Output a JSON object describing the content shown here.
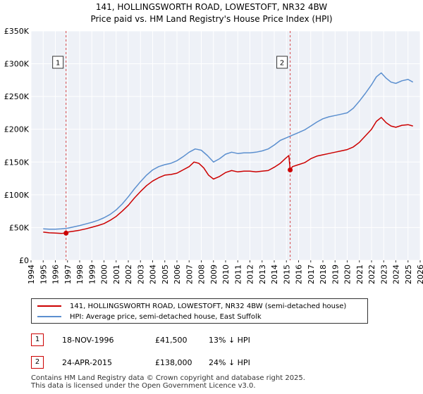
{
  "chart_data": {
    "type": "line",
    "title": "141, HOLLINGSWORTH ROAD, LOWESTOFT, NR32 4BW",
    "subtitle": "Price paid vs. HM Land Registry's House Price Index (HPI)",
    "xlabel": "",
    "ylabel": "",
    "xlim": [
      1994,
      2026
    ],
    "ylim": [
      0,
      350000
    ],
    "x_ticks": [
      "1994",
      "1995",
      "1996",
      "1997",
      "1998",
      "1999",
      "2000",
      "2001",
      "2002",
      "2003",
      "2004",
      "2005",
      "2006",
      "2007",
      "2008",
      "2009",
      "2010",
      "2011",
      "2012",
      "2013",
      "2014",
      "2015",
      "2016",
      "2017",
      "2018",
      "2019",
      "2020",
      "2021",
      "2022",
      "2023",
      "2024",
      "2025",
      "2026"
    ],
    "y_ticks": [
      {
        "value": 0,
        "label": "£0"
      },
      {
        "value": 50000,
        "label": "£50K"
      },
      {
        "value": 100000,
        "label": "£100K"
      },
      {
        "value": 150000,
        "label": "£150K"
      },
      {
        "value": 200000,
        "label": "£200K"
      },
      {
        "value": 250000,
        "label": "£250K"
      },
      {
        "value": 300000,
        "label": "£300K"
      },
      {
        "value": 350000,
        "label": "£350K"
      }
    ],
    "grid": true,
    "series": [
      {
        "name": "141, HOLLINGSWORTH ROAD, LOWESTOFT, NR32 4BW (semi-detached house)",
        "color": "#cc0000",
        "x": [
          1995.0,
          1995.5,
          1996.0,
          1996.5,
          1996.88,
          1997.0,
          1997.5,
          1998.0,
          1998.5,
          1999.0,
          1999.5,
          2000.0,
          2000.5,
          2001.0,
          2001.5,
          2002.0,
          2002.5,
          2003.0,
          2003.5,
          2004.0,
          2004.5,
          2005.0,
          2005.5,
          2006.0,
          2006.5,
          2007.0,
          2007.4,
          2007.8,
          2008.2,
          2008.6,
          2009.0,
          2009.5,
          2010.0,
          2010.5,
          2011.0,
          2011.5,
          2012.0,
          2012.5,
          2013.0,
          2013.5,
          2014.0,
          2014.5,
          2014.9,
          2015.2,
          2015.31,
          2015.5,
          2016.0,
          2016.5,
          2017.0,
          2017.5,
          2018.0,
          2018.5,
          2019.0,
          2019.5,
          2020.0,
          2020.5,
          2021.0,
          2021.5,
          2022.0,
          2022.4,
          2022.8,
          2023.2,
          2023.6,
          2024.0,
          2024.5,
          2025.0,
          2025.4
        ],
        "values": [
          43000,
          42000,
          41500,
          41000,
          41500,
          43000,
          44500,
          46000,
          48000,
          50500,
          53000,
          56000,
          61000,
          67000,
          75000,
          84000,
          95000,
          105000,
          114000,
          121000,
          126000,
          130000,
          131000,
          133000,
          138000,
          143000,
          150000,
          148000,
          141000,
          130000,
          124000,
          128000,
          134000,
          137000,
          135000,
          136000,
          136000,
          135000,
          136000,
          137000,
          142000,
          148000,
          155000,
          160000,
          138000,
          143000,
          146000,
          149000,
          155000,
          159000,
          161000,
          163000,
          165000,
          167000,
          169000,
          173000,
          180000,
          190000,
          200000,
          212000,
          218000,
          210000,
          205000,
          203000,
          206000,
          207000,
          205000
        ]
      },
      {
        "name": "HPI: Average price, semi-detached house, East Suffolk",
        "color": "#5b8fcf",
        "x": [
          1995.0,
          1995.5,
          1996.0,
          1996.5,
          1997.0,
          1997.5,
          1998.0,
          1998.5,
          1999.0,
          1999.5,
          2000.0,
          2000.5,
          2001.0,
          2001.5,
          2002.0,
          2002.5,
          2003.0,
          2003.5,
          2004.0,
          2004.5,
          2005.0,
          2005.5,
          2006.0,
          2006.5,
          2007.0,
          2007.5,
          2008.0,
          2008.5,
          2009.0,
          2009.5,
          2010.0,
          2010.5,
          2011.0,
          2011.5,
          2012.0,
          2012.5,
          2013.0,
          2013.5,
          2014.0,
          2014.5,
          2015.0,
          2015.5,
          2016.0,
          2016.5,
          2017.0,
          2017.5,
          2018.0,
          2018.5,
          2019.0,
          2019.5,
          2020.0,
          2020.5,
          2021.0,
          2021.5,
          2022.0,
          2022.4,
          2022.8,
          2023.2,
          2023.6,
          2024.0,
          2024.5,
          2025.0,
          2025.4
        ],
        "values": [
          48000,
          47500,
          47500,
          48000,
          49000,
          51000,
          53000,
          55500,
          58000,
          61000,
          65000,
          70000,
          77000,
          86000,
          97000,
          109000,
          120000,
          130000,
          138000,
          143000,
          146000,
          148000,
          152000,
          158000,
          165000,
          170000,
          168000,
          160000,
          150000,
          155000,
          162000,
          165000,
          163000,
          164000,
          164000,
          165000,
          167000,
          170000,
          176000,
          183000,
          187000,
          191000,
          195000,
          199000,
          205000,
          211000,
          216000,
          219000,
          221000,
          223000,
          225000,
          232000,
          243000,
          255000,
          268000,
          280000,
          286000,
          278000,
          272000,
          270000,
          274000,
          276000,
          272000
        ]
      }
    ],
    "annotations": [
      {
        "label": "1",
        "x": 1996.88,
        "value": 41500
      },
      {
        "label": "2",
        "x": 2015.31,
        "value": 138000
      }
    ]
  },
  "legend": {
    "items": [
      {
        "label": "141, HOLLINGSWORTH ROAD, LOWESTOFT, NR32 4BW (semi-detached house)",
        "color": "#cc0000"
      },
      {
        "label": "HPI: Average price, semi-detached house, East Suffolk",
        "color": "#5b8fcf"
      }
    ]
  },
  "sales": [
    {
      "num": "1",
      "date": "18-NOV-1996",
      "price": "£41,500",
      "hpi": "13% ↓ HPI"
    },
    {
      "num": "2",
      "date": "24-APR-2015",
      "price": "£138,000",
      "hpi": "24% ↓ HPI"
    }
  ],
  "footer": {
    "line1": "Contains HM Land Registry data © Crown copyright and database right 2025.",
    "line2": "This data is licensed under the Open Government Licence v3.0."
  }
}
